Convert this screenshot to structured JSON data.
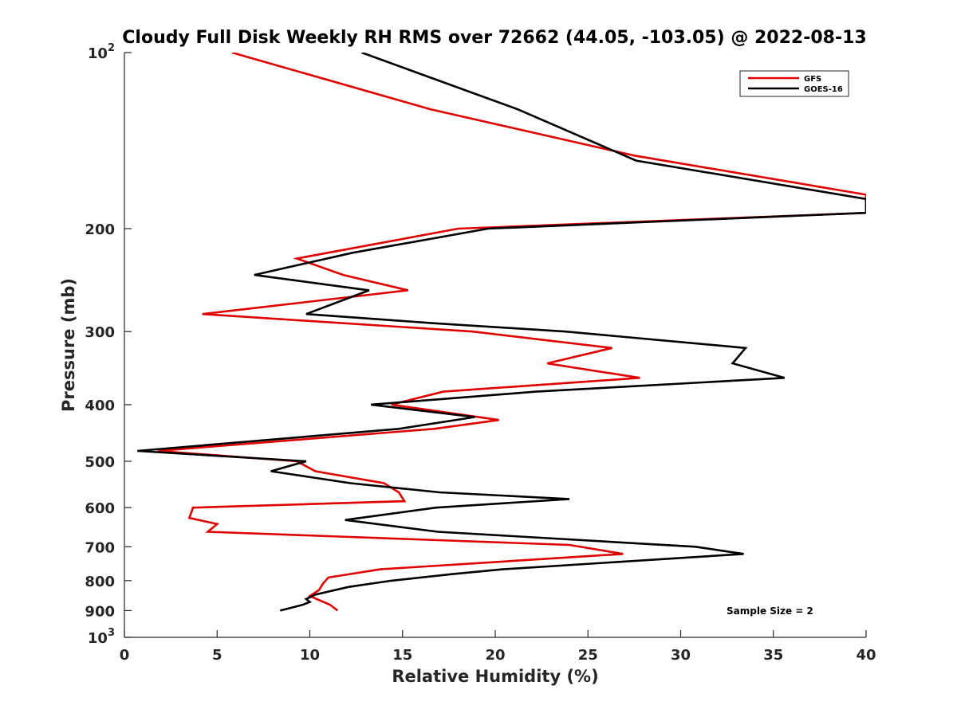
{
  "chart_data": {
    "type": "line",
    "title": "Cloudy Full Disk Weekly RH RMS over 72662 (44.05, -103.05) @ 2022-08-13",
    "xlabel": "Relative Humidity (%)",
    "ylabel": "Pressure (mb)",
    "xlim": [
      0,
      40
    ],
    "ylim": [
      100,
      1000
    ],
    "y_scale": "log",
    "y_reversed": true,
    "grid": false,
    "legend_position": "top-right",
    "x_ticks": [
      "0",
      "5",
      "10",
      "15",
      "20",
      "25",
      "30",
      "35",
      "40"
    ],
    "x_tick_values": [
      0,
      5,
      10,
      15,
      20,
      25,
      30,
      35,
      40
    ],
    "y_ticks": [
      {
        "value": 100,
        "label": "10",
        "sup": "2"
      },
      {
        "value": 200,
        "label": "200",
        "sup": ""
      },
      {
        "value": 300,
        "label": "300",
        "sup": ""
      },
      {
        "value": 400,
        "label": "400",
        "sup": ""
      },
      {
        "value": 500,
        "label": "500",
        "sup": ""
      },
      {
        "value": 600,
        "label": "600",
        "sup": ""
      },
      {
        "value": 700,
        "label": "700",
        "sup": ""
      },
      {
        "value": 800,
        "label": "800",
        "sup": ""
      },
      {
        "value": 900,
        "label": "900",
        "sup": ""
      },
      {
        "value": 1000,
        "label": "10",
        "sup": "3"
      }
    ],
    "annotation": "Sample Size = 2",
    "series": [
      {
        "name": "GFS",
        "color": "#e00000",
        "points": [
          [
            5.8,
            100
          ],
          [
            16.5,
            125
          ],
          [
            27.5,
            150
          ],
          [
            40,
            175
          ],
          [
            40,
            188
          ],
          [
            18,
            200
          ],
          [
            9.3,
            225
          ],
          [
            11.8,
            240
          ],
          [
            15.3,
            255
          ],
          [
            4.2,
            280
          ],
          [
            18.8,
            300
          ],
          [
            26.3,
            320
          ],
          [
            22.8,
            340
          ],
          [
            27.8,
            360
          ],
          [
            17.2,
            380
          ],
          [
            14.4,
            400
          ],
          [
            20.2,
            425
          ],
          [
            16.7,
            440
          ],
          [
            1.8,
            480
          ],
          [
            9.3,
            500
          ],
          [
            10.3,
            520
          ],
          [
            14,
            545
          ],
          [
            14.8,
            565
          ],
          [
            15.1,
            585
          ],
          [
            3.7,
            600
          ],
          [
            3.5,
            625
          ],
          [
            5,
            640
          ],
          [
            4.5,
            660
          ],
          [
            24,
            695
          ],
          [
            26.9,
            720
          ],
          [
            13.8,
            765
          ],
          [
            11,
            790
          ],
          [
            10.7,
            810
          ],
          [
            10.5,
            830
          ],
          [
            10,
            850
          ],
          [
            11.1,
            880
          ],
          [
            11.5,
            900
          ]
        ]
      },
      {
        "name": "GOES-16",
        "color": "#000000",
        "points": [
          [
            12.8,
            100
          ],
          [
            21.2,
            125
          ],
          [
            27.6,
            153
          ],
          [
            40,
            178
          ],
          [
            40,
            188
          ],
          [
            19.6,
            200
          ],
          [
            12.3,
            220
          ],
          [
            7,
            240
          ],
          [
            13.2,
            255
          ],
          [
            9.8,
            280
          ],
          [
            16.5,
            290
          ],
          [
            23.8,
            300
          ],
          [
            33.5,
            320
          ],
          [
            32.8,
            340
          ],
          [
            35.6,
            360
          ],
          [
            22.2,
            380
          ],
          [
            13.3,
            400
          ],
          [
            18.9,
            420
          ],
          [
            14.8,
            440
          ],
          [
            0.7,
            480
          ],
          [
            9.8,
            500
          ],
          [
            7.9,
            520
          ],
          [
            12.2,
            545
          ],
          [
            17,
            565
          ],
          [
            24,
            580
          ],
          [
            16.8,
            600
          ],
          [
            11.9,
            630
          ],
          [
            16.9,
            660
          ],
          [
            30.8,
            700
          ],
          [
            33.4,
            720
          ],
          [
            20.4,
            765
          ],
          [
            17.6,
            780
          ],
          [
            14.4,
            800
          ],
          [
            12.1,
            820
          ],
          [
            10.3,
            845
          ],
          [
            9.8,
            860
          ],
          [
            10,
            870
          ],
          [
            9.6,
            880
          ],
          [
            8.4,
            900
          ]
        ]
      }
    ]
  }
}
